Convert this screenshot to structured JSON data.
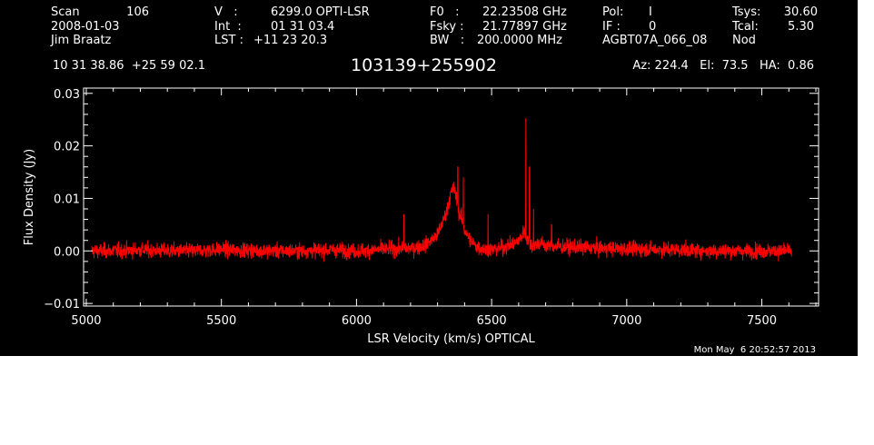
{
  "header": {
    "scan_label": "Scan",
    "scan_value": "106",
    "date": "2008-01-03",
    "observer": "Jim Braatz",
    "v_label": "V   :",
    "v_value": "6299.0 OPTI-LSR",
    "int_label": "Int  :",
    "int_value": "01 31 03.4",
    "lst_label": "LST :",
    "lst_value": "+11 23 20.3",
    "f0_label": "F0   :",
    "f0_value": "22.23508 GHz",
    "fsky_label": "Fsky :",
    "fsky_value": "21.77897 GHz",
    "bw_label": "BW   :",
    "bw_value": "200.0000 MHz",
    "pol_label": "Pol:",
    "pol_value": "I",
    "if_label": "IF :",
    "if_value": "0",
    "project": "AGBT07A_066_08",
    "tsys_label": "Tsys:",
    "tsys_value": "30.60",
    "tcal_label": "Tcal:",
    "tcal_value": "5.30",
    "mode": "Nod",
    "coords": "10 31 38.86  +25 59 02.1",
    "source": "103139+255902",
    "az_el_ha": "Az: 224.4   El:  73.5   HA:  0.86",
    "timestamp": "Mon May  6 20:52:57 2013"
  },
  "chart_data": {
    "type": "line",
    "title": "103139+255902",
    "xlabel": "LSR Velocity (km/s) OPTICAL",
    "ylabel": "Flux Density (Jy)",
    "xlim": [
      4990,
      7710
    ],
    "ylim": [
      -0.0105,
      0.031
    ],
    "x_ticks": [
      5000,
      5500,
      6000,
      6500,
      7000,
      7500
    ],
    "x_tick_labels": [
      "5000",
      "5500",
      "6000",
      "6500",
      "7000",
      "7500"
    ],
    "y_ticks": [
      -0.01,
      0.0,
      0.01,
      0.02,
      0.03
    ],
    "y_tick_labels": [
      "−0.01",
      "0.00",
      "0.01",
      "0.02",
      "0.03"
    ],
    "series": [
      {
        "color": "#ff0000",
        "x": [
          5020,
          5100,
          5200,
          5300,
          5400,
          5500,
          5600,
          5700,
          5800,
          5900,
          6000,
          6100,
          6200,
          6250,
          6300,
          6330,
          6350,
          6360,
          6370,
          6380,
          6390,
          6400,
          6420,
          6440,
          6460,
          6480,
          6500,
          6530,
          6560,
          6590,
          6610,
          6620,
          6630,
          6640,
          6650,
          6680,
          6700,
          6750,
          6800,
          6900,
          7000,
          7100,
          7200,
          7300,
          7400,
          7500,
          7610
        ],
        "y": [
          0.0,
          0.0,
          0.0002,
          0.0,
          0.0,
          0.0003,
          0.0001,
          0.0,
          0.0,
          0.0002,
          0.0,
          0.0003,
          0.0005,
          0.001,
          0.003,
          0.007,
          0.011,
          0.012,
          0.01,
          0.007,
          0.006,
          0.004,
          0.002,
          0.001,
          0.0005,
          0.0003,
          0.0002,
          0.0005,
          0.001,
          0.0015,
          0.0025,
          0.004,
          0.0025,
          0.0015,
          0.001,
          0.0015,
          0.001,
          0.0008,
          0.0007,
          0.0005,
          0.0004,
          0.0003,
          0.0002,
          0.0,
          0.0,
          0.0,
          0.0
        ]
      }
    ],
    "spikes": [
      {
        "x": 6175,
        "y": 0.007
      },
      {
        "x": 6375,
        "y": 0.016
      },
      {
        "x": 6395,
        "y": 0.014
      },
      {
        "x": 6487,
        "y": 0.007
      },
      {
        "x": 6627,
        "y": 0.0253
      },
      {
        "x": 6640,
        "y": 0.016
      },
      {
        "x": 6655,
        "y": 0.008
      },
      {
        "x": 6722,
        "y": 0.005
      }
    ],
    "noise_rms": 0.0012
  }
}
